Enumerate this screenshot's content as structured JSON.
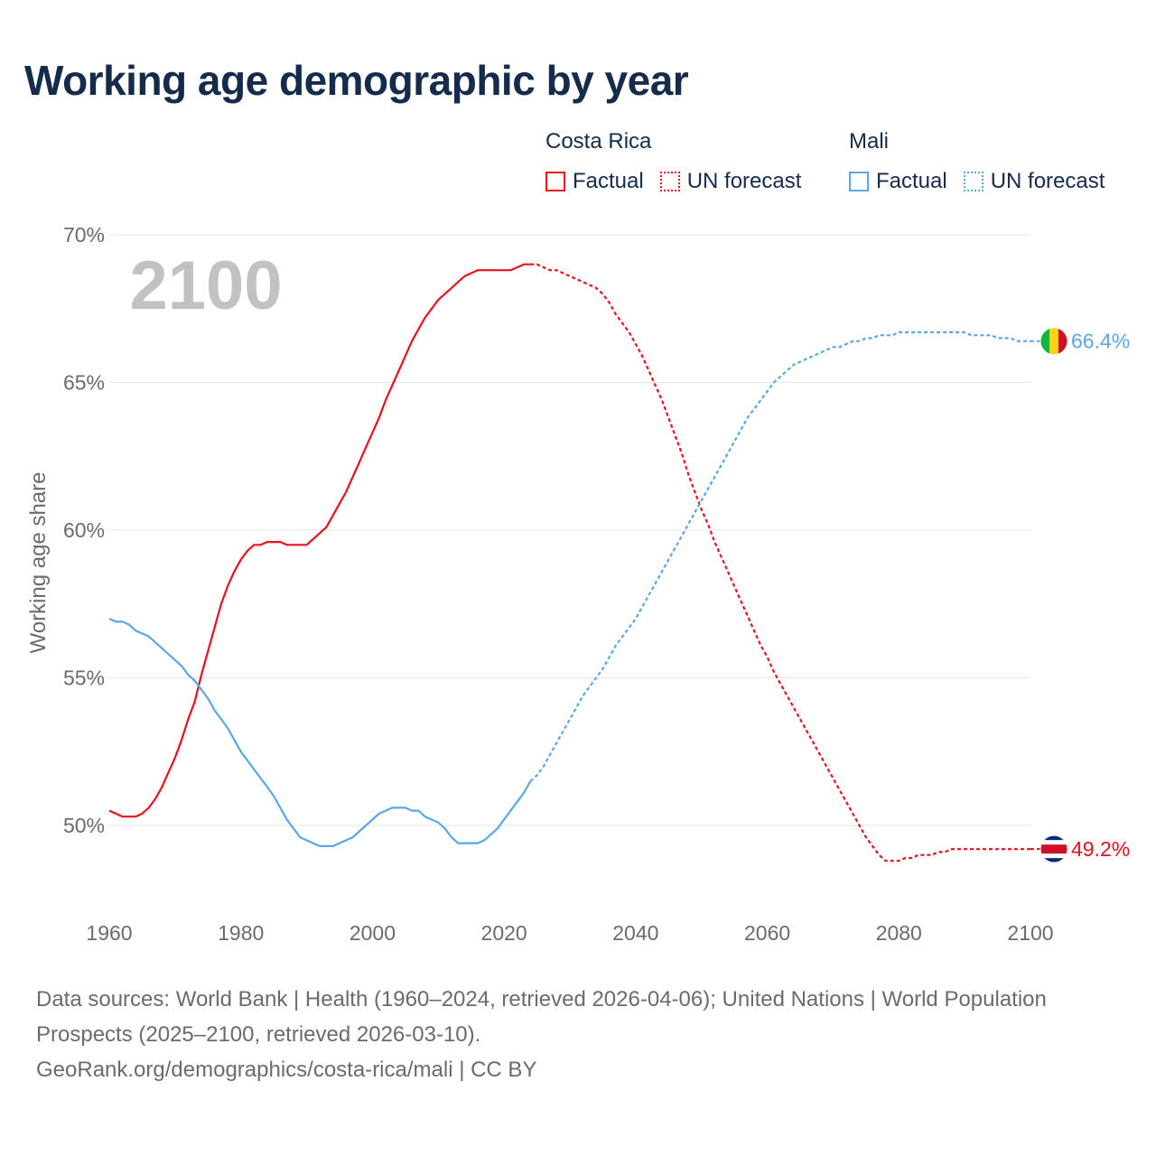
{
  "title": "Working age demographic by year",
  "legend": {
    "groups": [
      {
        "name": "Costa Rica",
        "color": "#e8101e",
        "items": [
          {
            "label": "Factual",
            "style": "solid"
          },
          {
            "label": "UN forecast",
            "style": "dotted"
          }
        ]
      },
      {
        "name": "Mali",
        "color": "#5aa6e6",
        "items": [
          {
            "label": "Factual",
            "style": "solid"
          },
          {
            "label": "UN forecast",
            "style": "dotted"
          }
        ]
      }
    ]
  },
  "footer": {
    "sources": "Data sources: World Bank | Health (1960–2024, retrieved 2026-04-06); United Nations | World Population Prospects (2025–2100, retrieved 2026-03-10).",
    "credit": "GeoRank.org/demographics/costa-rica/mali | CC BY"
  },
  "chart_data": {
    "type": "line",
    "title": "Working age demographic by year",
    "ylabel": "Working age share",
    "xlabel": "",
    "year_badge": "2100",
    "xlim": [
      1960,
      2100
    ],
    "ylim": [
      47,
      70
    ],
    "xticks": [
      1960,
      1980,
      2000,
      2020,
      2040,
      2060,
      2080,
      2100
    ],
    "yticks": [
      50,
      55,
      60,
      65,
      70
    ],
    "ytick_labels": [
      "50%",
      "55%",
      "60%",
      "65%",
      "70%"
    ],
    "grid": true,
    "forecast_start": 2024,
    "series": [
      {
        "name": "Costa Rica",
        "color": "#e8101e",
        "end_label": "49.2%",
        "flag": "costa-rica-flag",
        "points": [
          [
            1960,
            50.5
          ],
          [
            1961,
            50.4
          ],
          [
            1962,
            50.3
          ],
          [
            1963,
            50.3
          ],
          [
            1964,
            50.3
          ],
          [
            1965,
            50.4
          ],
          [
            1966,
            50.6
          ],
          [
            1967,
            50.9
          ],
          [
            1968,
            51.3
          ],
          [
            1969,
            51.8
          ],
          [
            1970,
            52.3
          ],
          [
            1971,
            52.9
          ],
          [
            1972,
            53.6
          ],
          [
            1973,
            54.2
          ],
          [
            1974,
            55.1
          ],
          [
            1975,
            55.9
          ],
          [
            1976,
            56.7
          ],
          [
            1977,
            57.5
          ],
          [
            1978,
            58.1
          ],
          [
            1979,
            58.6
          ],
          [
            1980,
            59.0
          ],
          [
            1981,
            59.3
          ],
          [
            1982,
            59.5
          ],
          [
            1983,
            59.5
          ],
          [
            1984,
            59.6
          ],
          [
            1985,
            59.6
          ],
          [
            1986,
            59.6
          ],
          [
            1987,
            59.5
          ],
          [
            1988,
            59.5
          ],
          [
            1989,
            59.5
          ],
          [
            1990,
            59.5
          ],
          [
            1991,
            59.7
          ],
          [
            1992,
            59.9
          ],
          [
            1993,
            60.1
          ],
          [
            1994,
            60.5
          ],
          [
            1995,
            60.9
          ],
          [
            1996,
            61.3
          ],
          [
            1997,
            61.8
          ],
          [
            1998,
            62.3
          ],
          [
            1999,
            62.8
          ],
          [
            2000,
            63.3
          ],
          [
            2001,
            63.8
          ],
          [
            2002,
            64.4
          ],
          [
            2003,
            64.9
          ],
          [
            2004,
            65.4
          ],
          [
            2005,
            65.9
          ],
          [
            2006,
            66.4
          ],
          [
            2007,
            66.8
          ],
          [
            2008,
            67.2
          ],
          [
            2009,
            67.5
          ],
          [
            2010,
            67.8
          ],
          [
            2011,
            68.0
          ],
          [
            2012,
            68.2
          ],
          [
            2013,
            68.4
          ],
          [
            2014,
            68.6
          ],
          [
            2015,
            68.7
          ],
          [
            2016,
            68.8
          ],
          [
            2017,
            68.8
          ],
          [
            2018,
            68.8
          ],
          [
            2019,
            68.8
          ],
          [
            2020,
            68.8
          ],
          [
            2021,
            68.8
          ],
          [
            2022,
            68.9
          ],
          [
            2023,
            69.0
          ],
          [
            2024,
            69.0
          ],
          [
            2025,
            69.0
          ],
          [
            2026,
            68.9
          ],
          [
            2027,
            68.8
          ],
          [
            2028,
            68.8
          ],
          [
            2029,
            68.7
          ],
          [
            2030,
            68.6
          ],
          [
            2031,
            68.5
          ],
          [
            2032,
            68.4
          ],
          [
            2033,
            68.3
          ],
          [
            2034,
            68.2
          ],
          [
            2035,
            68.0
          ],
          [
            2036,
            67.7
          ],
          [
            2037,
            67.3
          ],
          [
            2038,
            67.0
          ],
          [
            2039,
            66.7
          ],
          [
            2040,
            66.3
          ],
          [
            2041,
            65.9
          ],
          [
            2042,
            65.4
          ],
          [
            2043,
            64.9
          ],
          [
            2044,
            64.4
          ],
          [
            2045,
            63.8
          ],
          [
            2046,
            63.2
          ],
          [
            2047,
            62.6
          ],
          [
            2048,
            61.9
          ],
          [
            2049,
            61.3
          ],
          [
            2050,
            60.7
          ],
          [
            2051,
            60.2
          ],
          [
            2052,
            59.6
          ],
          [
            2053,
            59.1
          ],
          [
            2054,
            58.6
          ],
          [
            2055,
            58.1
          ],
          [
            2056,
            57.6
          ],
          [
            2057,
            57.1
          ],
          [
            2058,
            56.6
          ],
          [
            2059,
            56.1
          ],
          [
            2060,
            55.7
          ],
          [
            2061,
            55.2
          ],
          [
            2062,
            54.8
          ],
          [
            2063,
            54.4
          ],
          [
            2064,
            54.0
          ],
          [
            2065,
            53.6
          ],
          [
            2066,
            53.2
          ],
          [
            2067,
            52.8
          ],
          [
            2068,
            52.4
          ],
          [
            2069,
            52.0
          ],
          [
            2070,
            51.6
          ],
          [
            2071,
            51.2
          ],
          [
            2072,
            50.8
          ],
          [
            2073,
            50.4
          ],
          [
            2074,
            50.0
          ],
          [
            2075,
            49.6
          ],
          [
            2076,
            49.3
          ],
          [
            2077,
            49.0
          ],
          [
            2078,
            48.8
          ],
          [
            2079,
            48.8
          ],
          [
            2080,
            48.8
          ],
          [
            2081,
            48.9
          ],
          [
            2082,
            48.9
          ],
          [
            2083,
            49.0
          ],
          [
            2084,
            49.0
          ],
          [
            2085,
            49.0
          ],
          [
            2086,
            49.1
          ],
          [
            2087,
            49.1
          ],
          [
            2088,
            49.2
          ],
          [
            2089,
            49.2
          ],
          [
            2090,
            49.2
          ],
          [
            2091,
            49.2
          ],
          [
            2092,
            49.2
          ],
          [
            2093,
            49.2
          ],
          [
            2094,
            49.2
          ],
          [
            2095,
            49.2
          ],
          [
            2096,
            49.2
          ],
          [
            2097,
            49.2
          ],
          [
            2098,
            49.2
          ],
          [
            2099,
            49.2
          ],
          [
            2100,
            49.2
          ]
        ]
      },
      {
        "name": "Mali",
        "color": "#5aa6e6",
        "end_label": "66.4%",
        "flag": "mali-flag",
        "points": [
          [
            1960,
            57.0
          ],
          [
            1961,
            56.9
          ],
          [
            1962,
            56.9
          ],
          [
            1963,
            56.8
          ],
          [
            1964,
            56.6
          ],
          [
            1965,
            56.5
          ],
          [
            1966,
            56.4
          ],
          [
            1967,
            56.2
          ],
          [
            1968,
            56.0
          ],
          [
            1969,
            55.8
          ],
          [
            1970,
            55.6
          ],
          [
            1971,
            55.4
          ],
          [
            1972,
            55.1
          ],
          [
            1973,
            54.9
          ],
          [
            1974,
            54.6
          ],
          [
            1975,
            54.3
          ],
          [
            1976,
            53.9
          ],
          [
            1977,
            53.6
          ],
          [
            1978,
            53.3
          ],
          [
            1979,
            52.9
          ],
          [
            1980,
            52.5
          ],
          [
            1981,
            52.2
          ],
          [
            1982,
            51.9
          ],
          [
            1983,
            51.6
          ],
          [
            1984,
            51.3
          ],
          [
            1985,
            51.0
          ],
          [
            1986,
            50.6
          ],
          [
            1987,
            50.2
          ],
          [
            1988,
            49.9
          ],
          [
            1989,
            49.6
          ],
          [
            1990,
            49.5
          ],
          [
            1991,
            49.4
          ],
          [
            1992,
            49.3
          ],
          [
            1993,
            49.3
          ],
          [
            1994,
            49.3
          ],
          [
            1995,
            49.4
          ],
          [
            1996,
            49.5
          ],
          [
            1997,
            49.6
          ],
          [
            1998,
            49.8
          ],
          [
            1999,
            50.0
          ],
          [
            2000,
            50.2
          ],
          [
            2001,
            50.4
          ],
          [
            2002,
            50.5
          ],
          [
            2003,
            50.6
          ],
          [
            2004,
            50.6
          ],
          [
            2005,
            50.6
          ],
          [
            2006,
            50.5
          ],
          [
            2007,
            50.5
          ],
          [
            2008,
            50.3
          ],
          [
            2009,
            50.2
          ],
          [
            2010,
            50.1
          ],
          [
            2011,
            49.9
          ],
          [
            2012,
            49.6
          ],
          [
            2013,
            49.4
          ],
          [
            2014,
            49.4
          ],
          [
            2015,
            49.4
          ],
          [
            2016,
            49.4
          ],
          [
            2017,
            49.5
          ],
          [
            2018,
            49.7
          ],
          [
            2019,
            49.9
          ],
          [
            2020,
            50.2
          ],
          [
            2021,
            50.5
          ],
          [
            2022,
            50.8
          ],
          [
            2023,
            51.1
          ],
          [
            2024,
            51.5
          ],
          [
            2025,
            51.7
          ],
          [
            2026,
            52.0
          ],
          [
            2027,
            52.4
          ],
          [
            2028,
            52.8
          ],
          [
            2029,
            53.2
          ],
          [
            2030,
            53.6
          ],
          [
            2031,
            54.0
          ],
          [
            2032,
            54.4
          ],
          [
            2033,
            54.7
          ],
          [
            2034,
            55.0
          ],
          [
            2035,
            55.3
          ],
          [
            2036,
            55.7
          ],
          [
            2037,
            56.1
          ],
          [
            2038,
            56.4
          ],
          [
            2039,
            56.7
          ],
          [
            2040,
            57.0
          ],
          [
            2041,
            57.4
          ],
          [
            2042,
            57.8
          ],
          [
            2043,
            58.2
          ],
          [
            2044,
            58.6
          ],
          [
            2045,
            59.0
          ],
          [
            2046,
            59.4
          ],
          [
            2047,
            59.8
          ],
          [
            2048,
            60.2
          ],
          [
            2049,
            60.6
          ],
          [
            2050,
            61.0
          ],
          [
            2051,
            61.4
          ],
          [
            2052,
            61.8
          ],
          [
            2053,
            62.2
          ],
          [
            2054,
            62.6
          ],
          [
            2055,
            63.0
          ],
          [
            2056,
            63.4
          ],
          [
            2057,
            63.8
          ],
          [
            2058,
            64.1
          ],
          [
            2059,
            64.4
          ],
          [
            2060,
            64.7
          ],
          [
            2061,
            65.0
          ],
          [
            2062,
            65.2
          ],
          [
            2063,
            65.4
          ],
          [
            2064,
            65.6
          ],
          [
            2065,
            65.7
          ],
          [
            2066,
            65.8
          ],
          [
            2067,
            65.9
          ],
          [
            2068,
            66.0
          ],
          [
            2069,
            66.1
          ],
          [
            2070,
            66.2
          ],
          [
            2071,
            66.2
          ],
          [
            2072,
            66.3
          ],
          [
            2073,
            66.4
          ],
          [
            2074,
            66.4
          ],
          [
            2075,
            66.5
          ],
          [
            2076,
            66.5
          ],
          [
            2077,
            66.6
          ],
          [
            2078,
            66.6
          ],
          [
            2079,
            66.6
          ],
          [
            2080,
            66.7
          ],
          [
            2081,
            66.7
          ],
          [
            2082,
            66.7
          ],
          [
            2083,
            66.7
          ],
          [
            2084,
            66.7
          ],
          [
            2085,
            66.7
          ],
          [
            2086,
            66.7
          ],
          [
            2087,
            66.7
          ],
          [
            2088,
            66.7
          ],
          [
            2089,
            66.7
          ],
          [
            2090,
            66.7
          ],
          [
            2091,
            66.6
          ],
          [
            2092,
            66.6
          ],
          [
            2093,
            66.6
          ],
          [
            2094,
            66.6
          ],
          [
            2095,
            66.5
          ],
          [
            2096,
            66.5
          ],
          [
            2097,
            66.5
          ],
          [
            2098,
            66.4
          ],
          [
            2099,
            66.4
          ],
          [
            2100,
            66.4
          ]
        ]
      }
    ]
  }
}
